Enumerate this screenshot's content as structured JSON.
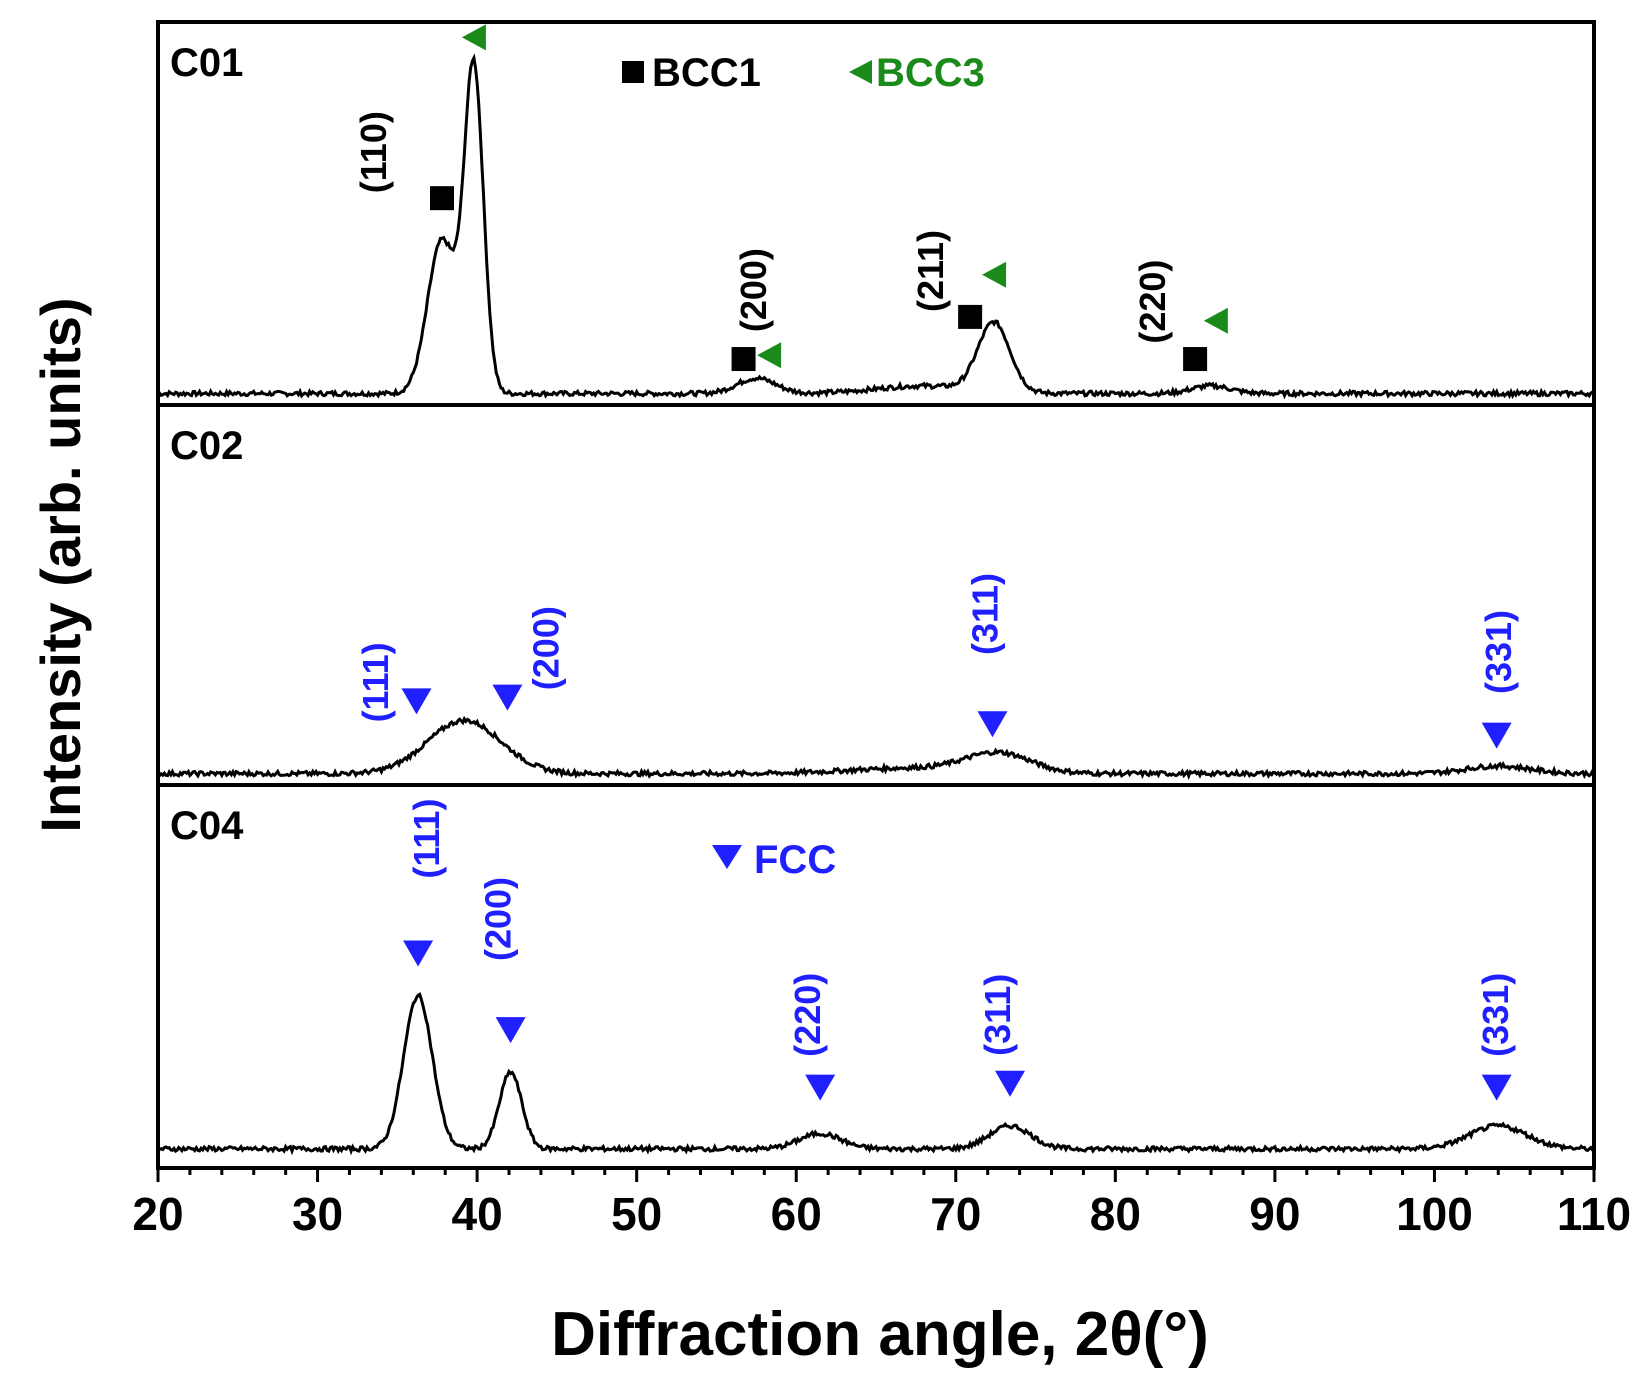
{
  "chart_data": {
    "type": "line",
    "xlabel": "Diffraction angle, 2θ(°)",
    "ylabel": "Intensity (arb. units)",
    "xlim": [
      20,
      110
    ],
    "ylim": [
      0,
      1
    ],
    "xticks": [
      20,
      30,
      40,
      50,
      60,
      70,
      80,
      90,
      100,
      110
    ],
    "xtick_labels": [
      "20",
      "30",
      "40",
      "50",
      "60",
      "70",
      "80",
      "90",
      "100",
      "110"
    ],
    "colors": {
      "line": "#000000",
      "bcc1": "#000000",
      "bcc3": "#1a8a1a",
      "fcc": "#1f1fff"
    },
    "legend": {
      "bcc1": "BCC1",
      "bcc3": "BCC3",
      "fcc": "FCC"
    },
    "panels": [
      {
        "name": "C01",
        "baseline": 0.03,
        "peaks": [
          {
            "x": 37.8,
            "height": 0.4,
            "width": 0.9
          },
          {
            "x": 39.8,
            "height": 0.84,
            "width": 0.6
          },
          {
            "x": 57.5,
            "height": 0.04,
            "width": 1.2
          },
          {
            "x": 72.4,
            "height": 0.18,
            "width": 1.0
          },
          {
            "x": 68.0,
            "height": 0.02,
            "width": 3.0
          },
          {
            "x": 86.0,
            "height": 0.02,
            "width": 1.2
          }
        ],
        "hkl_labels": [
          {
            "text": "(110)",
            "x": 34.3,
            "y": 0.66
          },
          {
            "text": "(200)",
            "x": 58.1,
            "y": 0.3
          },
          {
            "text": "(211)",
            "x": 69.2,
            "y": 0.35
          },
          {
            "text": "(220)",
            "x": 83.1,
            "y": 0.27
          }
        ],
        "bcc1_markers": [
          {
            "x": 37.8,
            "y": 0.54
          },
          {
            "x": 56.7,
            "y": 0.12
          },
          {
            "x": 70.9,
            "y": 0.23
          },
          {
            "x": 85.0,
            "y": 0.12
          }
        ],
        "bcc3_markers": [
          {
            "x": 39.8,
            "y": 0.96
          },
          {
            "x": 58.3,
            "y": 0.13
          },
          {
            "x": 72.4,
            "y": 0.34
          },
          {
            "x": 86.3,
            "y": 0.22
          }
        ]
      },
      {
        "name": "C02",
        "baseline": 0.03,
        "peaks": [
          {
            "x": 39.2,
            "height": 0.14,
            "width": 2.3
          },
          {
            "x": 72.7,
            "height": 0.05,
            "width": 2.0
          },
          {
            "x": 67.5,
            "height": 0.015,
            "width": 4.0
          },
          {
            "x": 104.0,
            "height": 0.02,
            "width": 2.0
          }
        ],
        "hkl_labels": [
          {
            "text": "(111)",
            "x": 34.4,
            "y": 0.27
          },
          {
            "text": "(200)",
            "x": 45.1,
            "y": 0.36
          },
          {
            "text": "(311)",
            "x": 72.6,
            "y": 0.45
          },
          {
            "text": "(331)",
            "x": 104.8,
            "y": 0.35
          }
        ],
        "fcc_markers": [
          {
            "x": 36.2,
            "y": 0.22
          },
          {
            "x": 41.9,
            "y": 0.23
          },
          {
            "x": 72.3,
            "y": 0.16
          },
          {
            "x": 103.9,
            "y": 0.13
          }
        ]
      },
      {
        "name": "C04",
        "baseline": 0.05,
        "peaks": [
          {
            "x": 36.3,
            "height": 0.4,
            "width": 0.9
          },
          {
            "x": 42.1,
            "height": 0.2,
            "width": 0.7
          },
          {
            "x": 61.5,
            "height": 0.04,
            "width": 1.3
          },
          {
            "x": 73.4,
            "height": 0.06,
            "width": 1.3
          },
          {
            "x": 104.0,
            "height": 0.06,
            "width": 1.8
          }
        ],
        "hkl_labels": [
          {
            "text": "(111)",
            "x": 37.6,
            "y": 0.86
          },
          {
            "text": "(200)",
            "x": 42.1,
            "y": 0.65
          },
          {
            "text": "(220)",
            "x": 61.5,
            "y": 0.4
          },
          {
            "text": "(311)",
            "x": 73.4,
            "y": 0.4
          },
          {
            "text": "(331)",
            "x": 104.6,
            "y": 0.4
          }
        ],
        "fcc_markers": [
          {
            "x": 36.3,
            "y": 0.56
          },
          {
            "x": 42.1,
            "y": 0.36
          },
          {
            "x": 61.5,
            "y": 0.21
          },
          {
            "x": 73.4,
            "y": 0.22
          },
          {
            "x": 103.9,
            "y": 0.21
          }
        ],
        "legend_fcc": true
      }
    ],
    "legend_bcc": {
      "panel": "C01"
    }
  }
}
